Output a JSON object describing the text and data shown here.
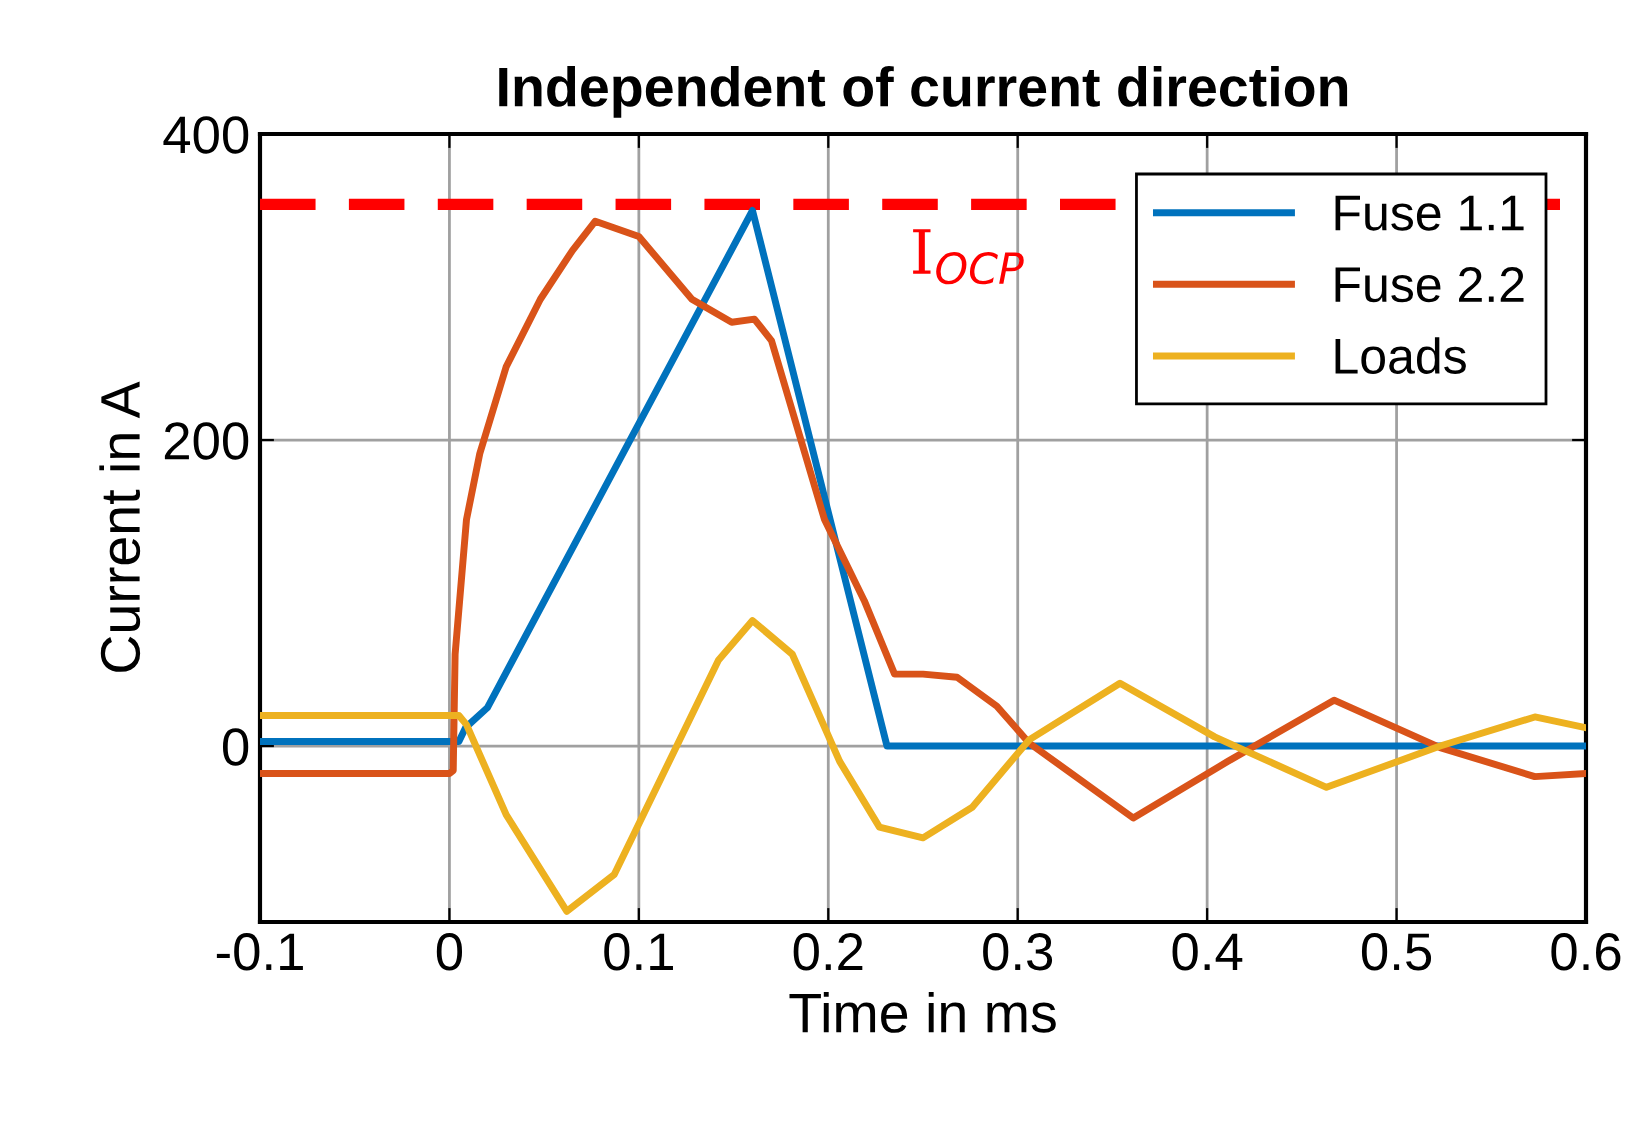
{
  "chart_data": {
    "type": "line",
    "title": "Independent of current direction",
    "xlabel": "Time in ms",
    "ylabel": "Current in A",
    "xlim": [
      -0.1,
      0.6
    ],
    "xticks": [
      -0.1,
      0,
      0.1,
      0.2,
      0.3,
      0.4,
      0.5,
      0.6
    ],
    "ylim": [
      -115,
      400
    ],
    "yticks": [
      0,
      200,
      400
    ],
    "grid": true,
    "legend": "top right",
    "line_style": "solid",
    "marker": "none",
    "ref_lines": [
      {
        "axis": "y",
        "value": 354,
        "label": "I$_{OCP}$",
        "color": "#ff0000",
        "line_style": "dashed"
      }
    ],
    "series": [
      {
        "name": "Fuse 1.1",
        "color": "#0072bd",
        "x": [
          -0.1,
          0.005,
          0.0085,
          0.02,
          0.16,
          0.231,
          0.6
        ],
        "values": [
          3,
          3,
          12,
          25,
          350,
          0,
          0
        ]
      },
      {
        "name": "Fuse 2.2",
        "color": "#d95319",
        "x": [
          -0.1,
          0.0,
          0.002,
          0.003,
          0.009,
          0.016,
          0.03,
          0.048,
          0.065,
          0.077,
          0.1,
          0.128,
          0.149,
          0.161,
          0.17,
          0.198,
          0.219,
          0.235,
          0.25,
          0.268,
          0.289,
          0.306,
          0.361,
          0.411,
          0.467,
          0.523,
          0.573,
          0.6
        ],
        "values": [
          -18,
          -18,
          -16,
          60,
          148,
          191,
          248,
          292,
          324,
          343,
          333,
          292,
          277,
          279,
          265,
          148,
          95,
          47,
          47,
          45,
          26,
          2,
          -47,
          -10,
          30,
          -1,
          -20,
          -18
        ]
      },
      {
        "name": "Loads",
        "color": "#edb120",
        "x": [
          -0.1,
          0.005,
          0.009,
          0.03,
          0.062,
          0.087,
          0.118,
          0.142,
          0.16,
          0.181,
          0.206,
          0.227,
          0.25,
          0.276,
          0.306,
          0.354,
          0.404,
          0.463,
          0.523,
          0.573,
          0.6
        ],
        "values": [
          20,
          20,
          14,
          -45,
          -108,
          -84,
          -5,
          56,
          82,
          60,
          -10,
          -53,
          -60,
          -40,
          4,
          41,
          6,
          -27,
          0,
          19,
          12
        ]
      }
    ]
  }
}
